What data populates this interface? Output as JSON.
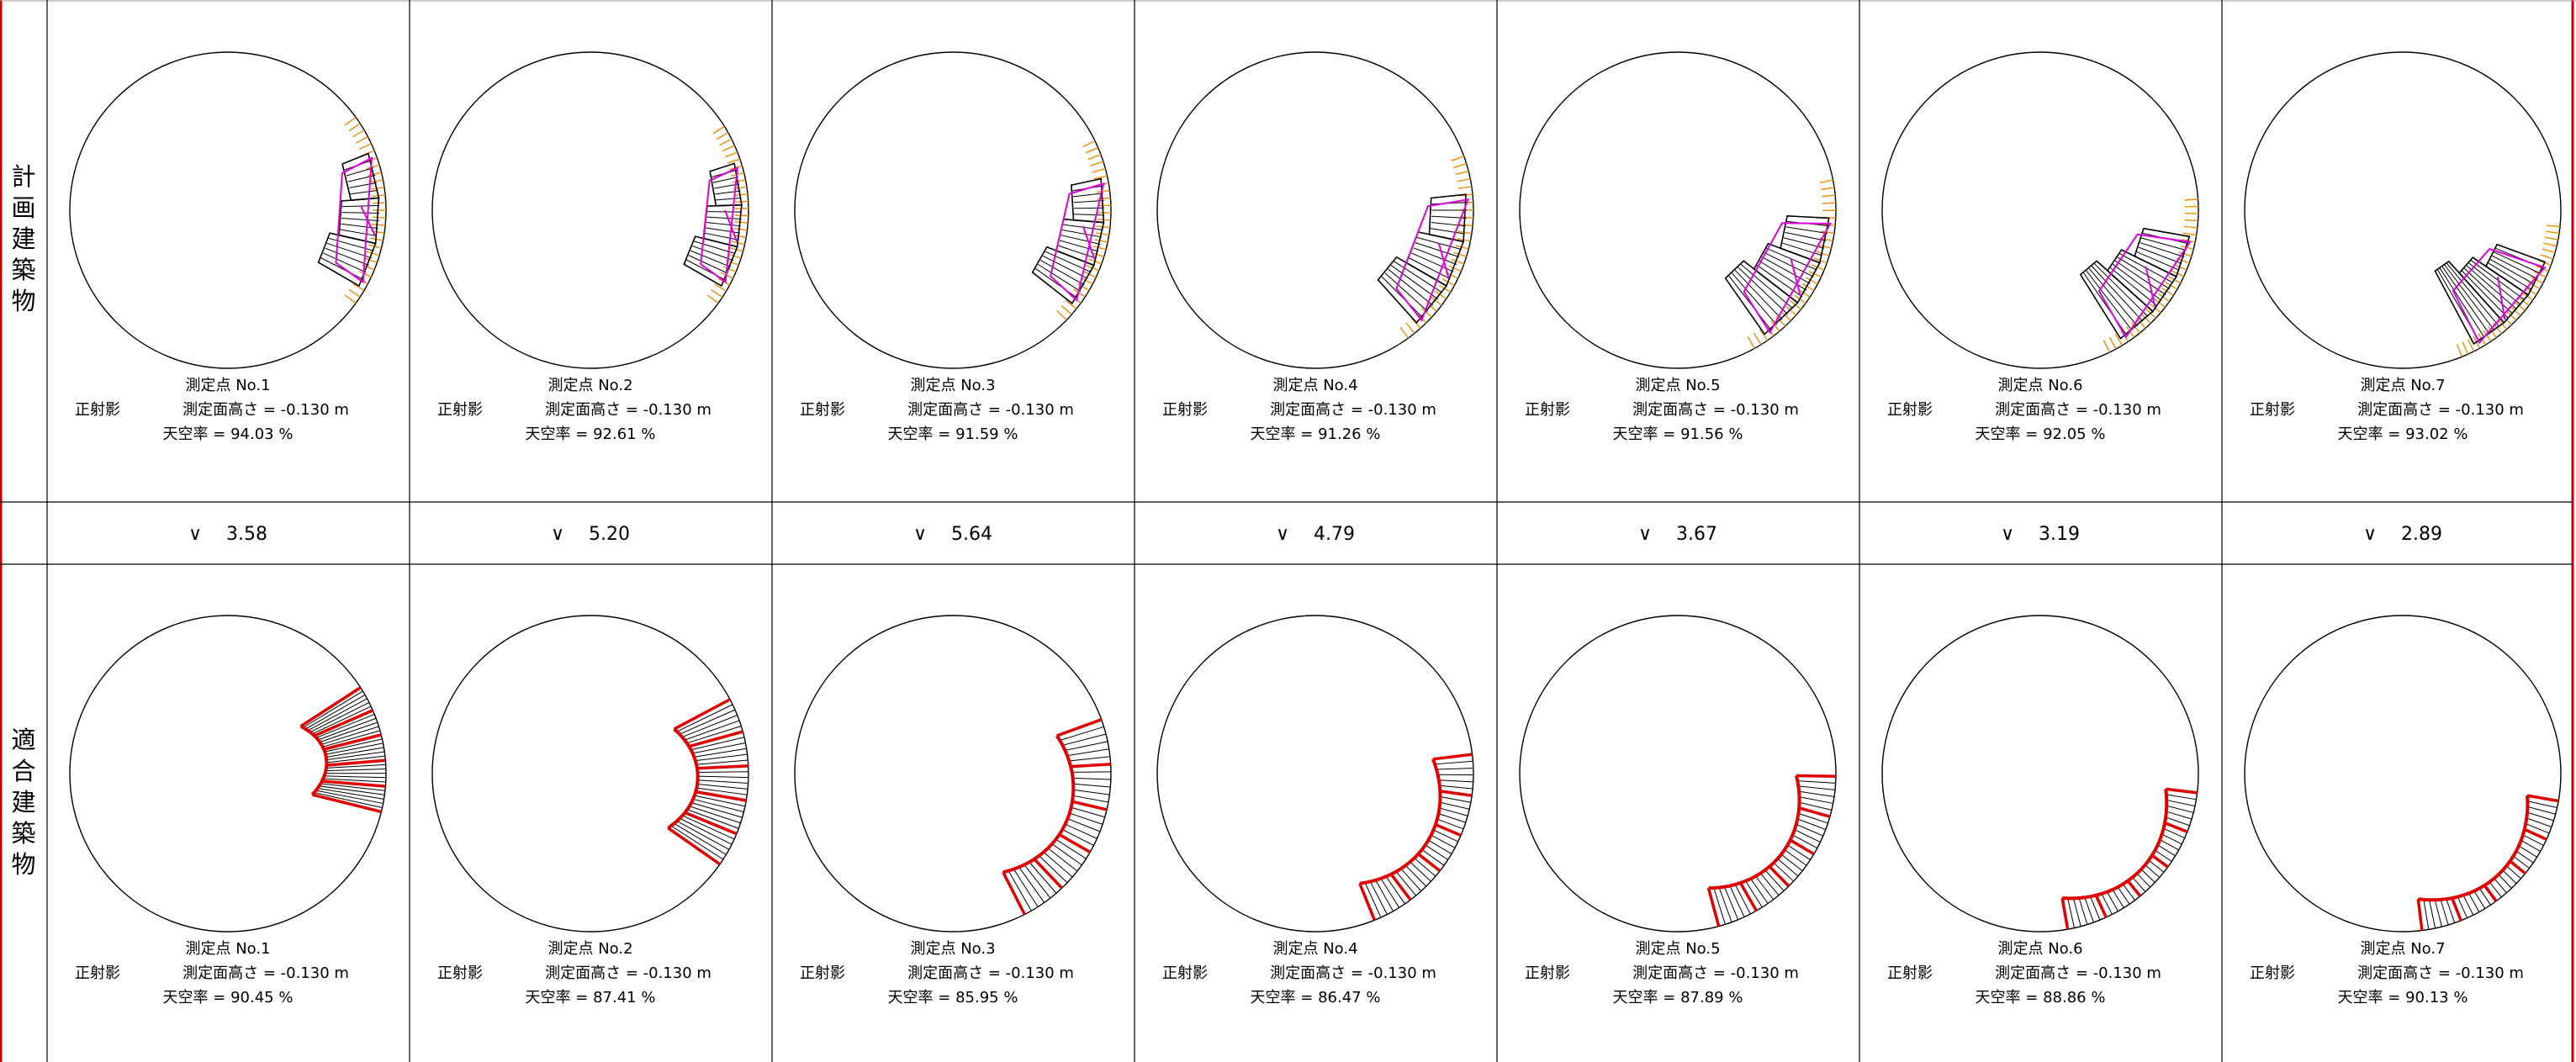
{
  "row_labels": {
    "planned": [
      "計",
      "画",
      "建",
      "築",
      "物"
    ],
    "conforming": [
      "適",
      "合",
      "建",
      "築",
      "物"
    ]
  },
  "caption_common": {
    "point_prefix": "測定点 No.",
    "projection": "正射影",
    "height_text": "測定面高さ = -0.130 m",
    "sky_prefix": "天空率 = "
  },
  "colors": {
    "frame": "#cc0000",
    "grid": "#000000",
    "planned_black": "#000000",
    "planned_magenta": "#e000e0",
    "planned_orange": "#f08c00",
    "conforming_red": "#e00000"
  },
  "points": [
    {
      "no": "1",
      "planned_sky": "94.03 %",
      "conforming_sky": "90.45 %",
      "comparison": "∨　 3.58"
    },
    {
      "no": "2",
      "planned_sky": "92.61 %",
      "conforming_sky": "87.41 %",
      "comparison": "∨　 5.20"
    },
    {
      "no": "3",
      "planned_sky": "91.59 %",
      "conforming_sky": "85.95 %",
      "comparison": "∨　 5.64"
    },
    {
      "no": "4",
      "planned_sky": "91.26 %",
      "conforming_sky": "86.47 %",
      "comparison": "∨　 4.79"
    },
    {
      "no": "5",
      "planned_sky": "91.56 %",
      "conforming_sky": "87.89 %",
      "comparison": "∨　 3.67"
    },
    {
      "no": "6",
      "planned_sky": "92.05 %",
      "conforming_sky": "88.86 %",
      "comparison": "∨　 3.19"
    },
    {
      "no": "7",
      "planned_sky": "93.02 %",
      "conforming_sky": "90.13 %",
      "comparison": "∨　 2.89"
    }
  ]
}
